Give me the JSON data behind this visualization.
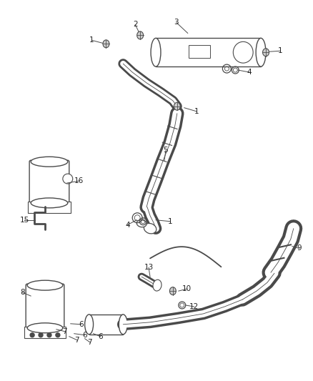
{
  "bg_color": "#ffffff",
  "line_color": "#4a4a4a",
  "label_color": "#222222",
  "figsize": [
    4.38,
    5.33
  ],
  "dpi": 100
}
